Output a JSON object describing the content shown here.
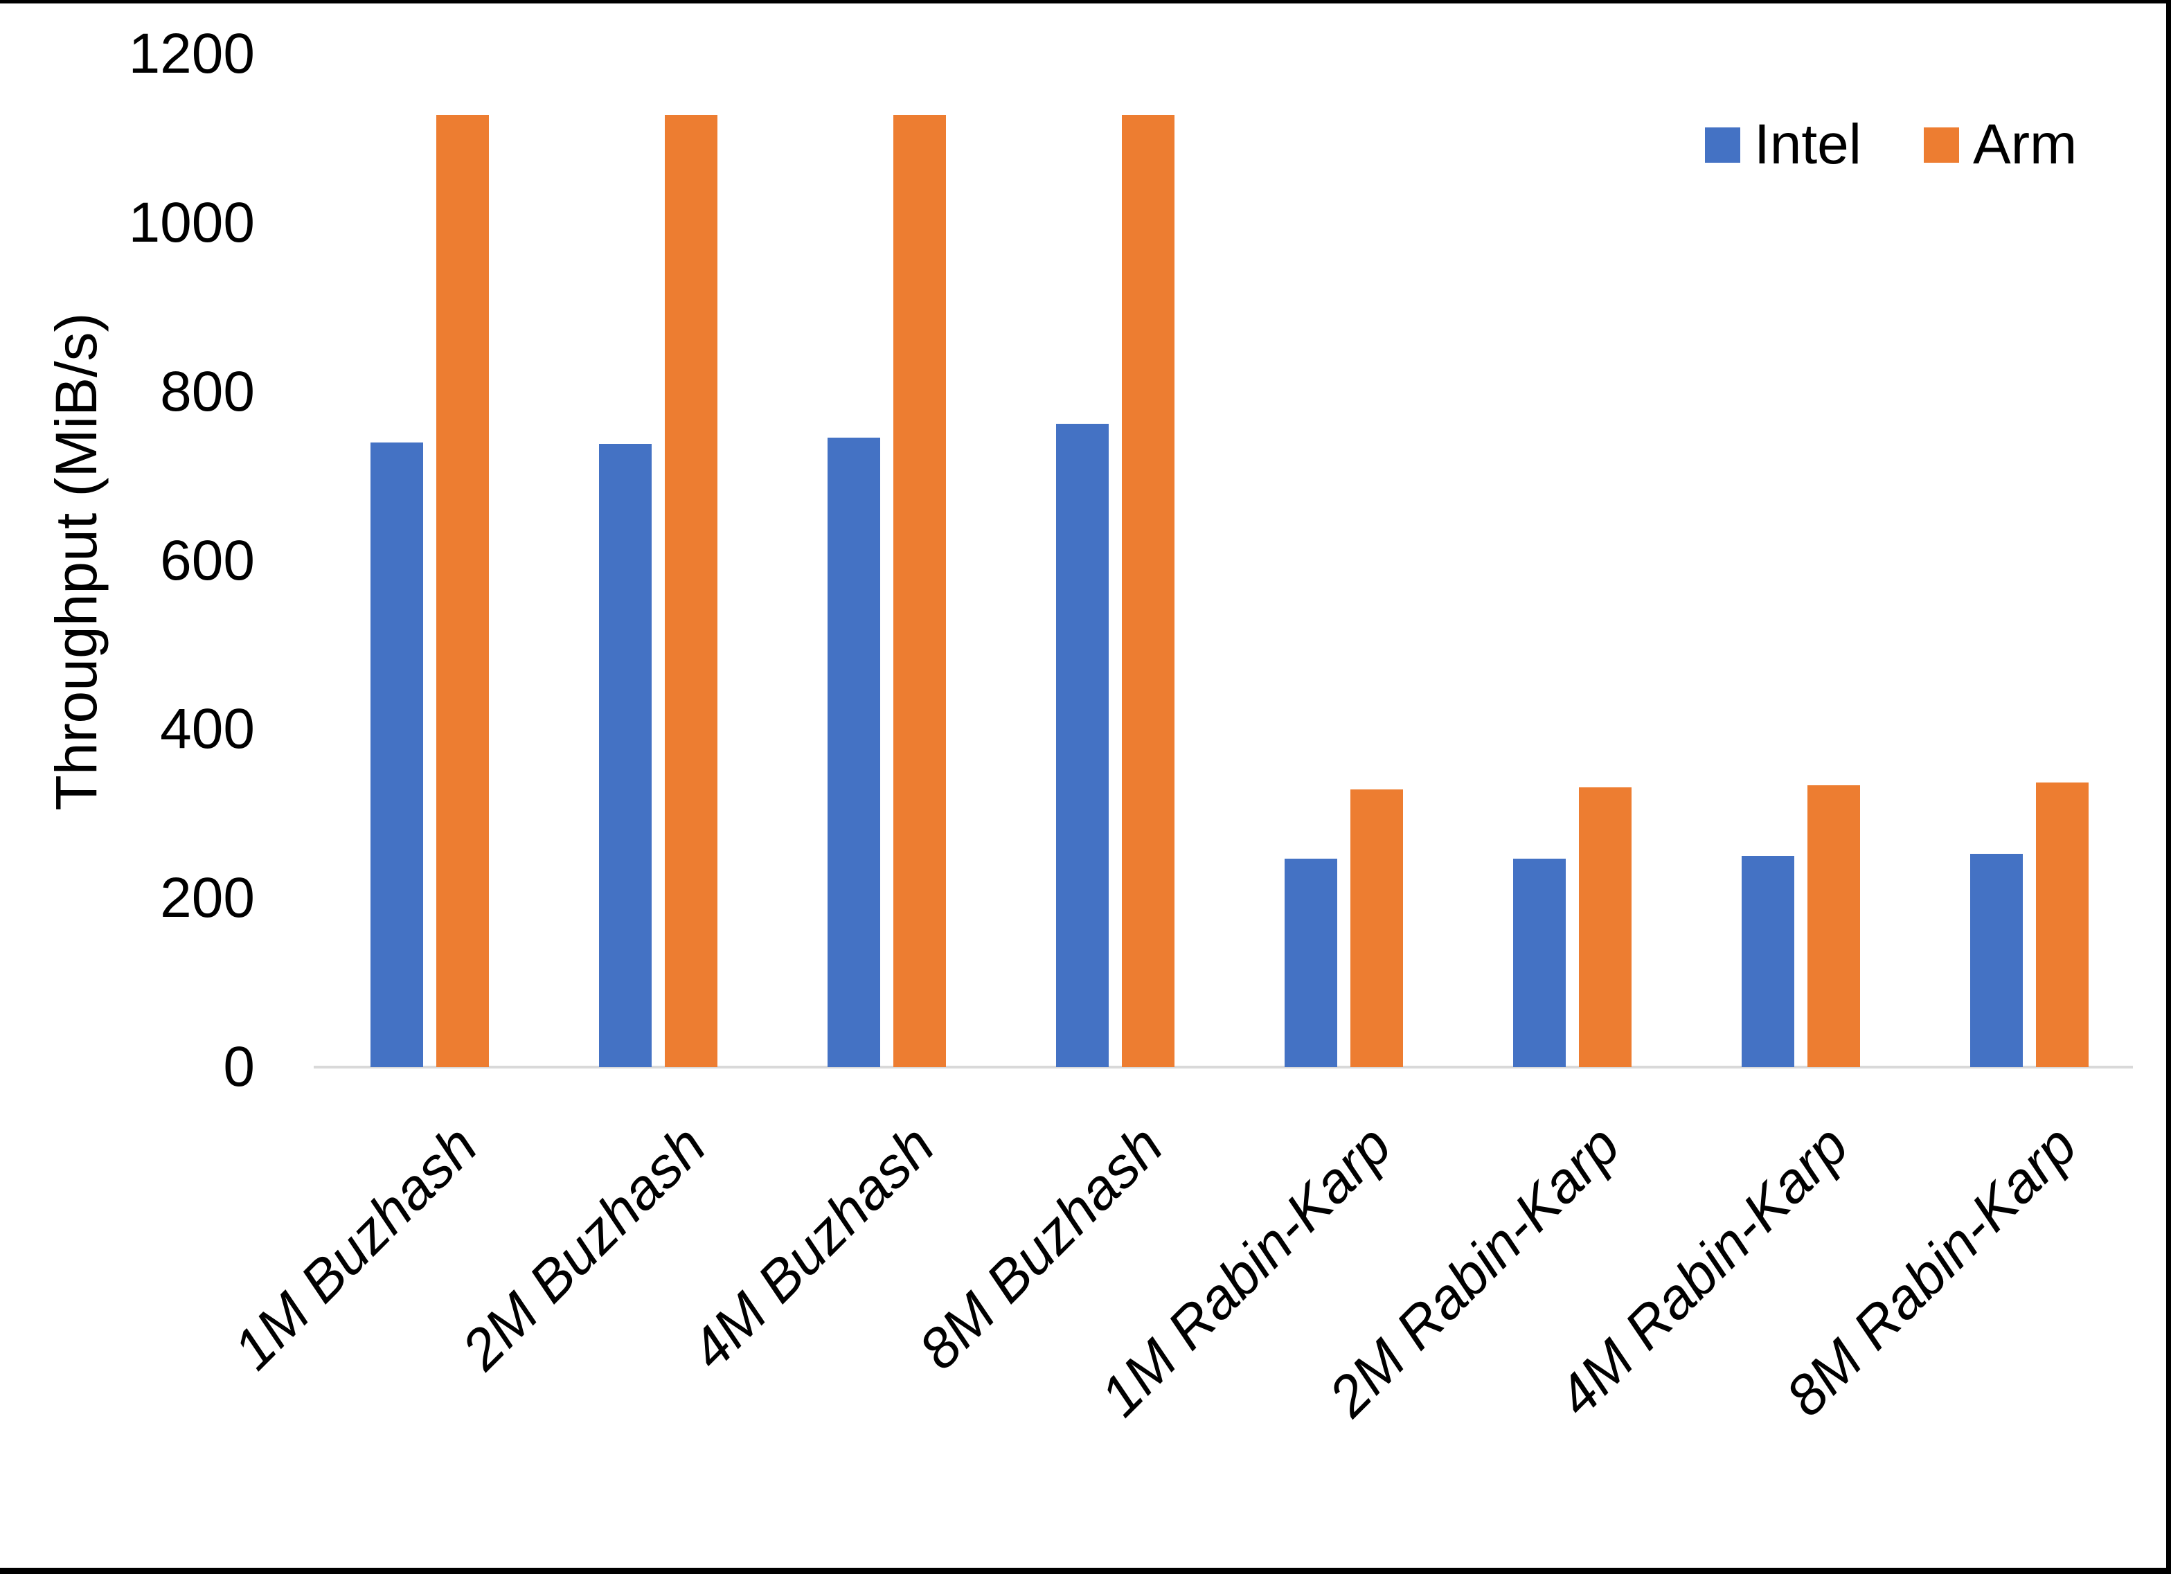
{
  "chart_data": {
    "type": "bar",
    "title": "",
    "ylabel": "Throughput (MiB/s)",
    "xlabel": "",
    "ylim": [
      0,
      1200
    ],
    "yticks": [
      0,
      200,
      400,
      600,
      800,
      1000,
      1200
    ],
    "grid": false,
    "legend_position": "top-right",
    "categories": [
      "1M Buzhash",
      "2M Buzhash",
      "4M Buzhash",
      "8M Buzhash",
      "1M Rabin-Karp",
      "2M Rabin-Karp",
      "4M Rabin-Karp",
      "8M Rabin-Karp"
    ],
    "series": [
      {
        "name": "Intel",
        "color": "#4472C4",
        "values": [
          740,
          738,
          746,
          762,
          247,
          247,
          250,
          253
        ]
      },
      {
        "name": "Arm",
        "color": "#ED7D31",
        "values": [
          1128,
          1128,
          1128,
          1128,
          329,
          331,
          334,
          337
        ]
      }
    ]
  },
  "frame": {
    "border_color": "#000000",
    "axis_line_color": "#D9D9D9"
  }
}
